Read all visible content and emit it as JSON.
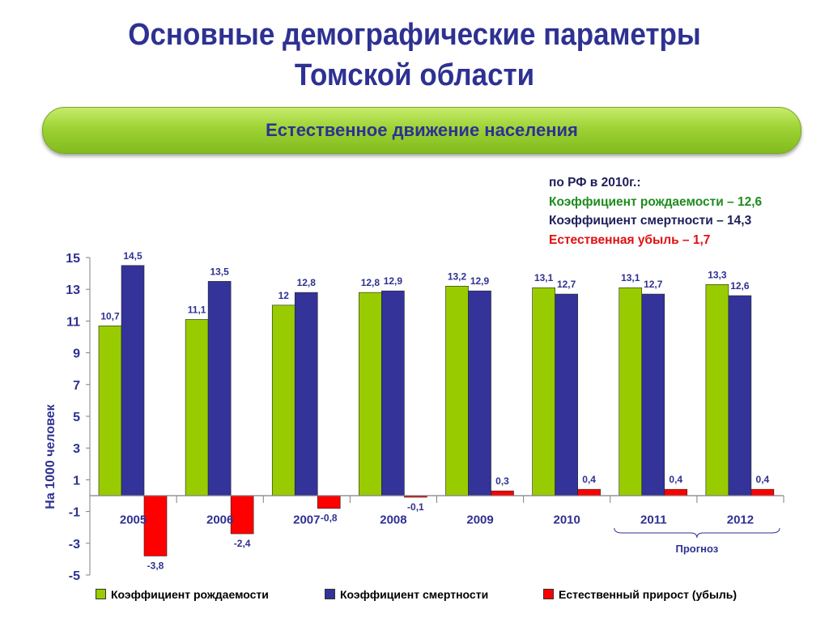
{
  "slide": {
    "title_line1": "Основные демографические параметры",
    "title_line2": "Томской области",
    "banner": "Естественное движение населения"
  },
  "note": {
    "header": "по РФ в 2010г.:",
    "birth": "Коэффициент рождаемости – 12,6",
    "death": "Коэффициент смертности – 14,3",
    "decline": "Естественная убыль – 1,7",
    "colors": {
      "header": "#1F1F5B",
      "birth": "#1E8C1E",
      "death": "#1F1F5B",
      "decline": "#E01010"
    }
  },
  "chart_data": {
    "type": "bar",
    "categories": [
      "2005",
      "2006",
      "2007",
      "2008",
      "2009",
      "2010",
      "2011",
      "2012"
    ],
    "series": [
      {
        "name": "Коэффициент рождаемости",
        "color": "#99CC00",
        "values": [
          10.7,
          11.1,
          12,
          12.8,
          13.2,
          13.1,
          13.1,
          13.3
        ],
        "labels": [
          "10,7",
          "11,1",
          "12",
          "12,8",
          "13,2",
          "13,1",
          "13,1",
          "13,3"
        ]
      },
      {
        "name": "Коэффициент смертности",
        "color": "#33339A",
        "values": [
          14.5,
          13.5,
          12.8,
          12.9,
          12.9,
          12.7,
          12.7,
          12.6
        ],
        "labels": [
          "14,5",
          "13,5",
          "12,8",
          "12,9",
          "12,9",
          "12,7",
          "12,7",
          "12,6"
        ]
      },
      {
        "name": "Естественный прирост (убыль)",
        "color": "#FF0000",
        "values": [
          -3.8,
          -2.4,
          -0.8,
          -0.1,
          0.3,
          0.4,
          0.4,
          0.4
        ],
        "labels": [
          "-3,8",
          "-2,4",
          "-0,8",
          "-0,1",
          "0,3",
          "0,4",
          "0,4",
          "0,4"
        ]
      }
    ],
    "ylabel": "На 1000 человек",
    "ylim": [
      -5,
      15
    ],
    "yticks": [
      "15",
      "13",
      "11",
      "9",
      "7",
      "5",
      "3",
      "1",
      "-1",
      "-3",
      "-5"
    ],
    "forecast_label": "Прогноз",
    "forecast_categories": [
      "2011",
      "2012"
    ],
    "legend_position": "bottom",
    "grid": false
  }
}
